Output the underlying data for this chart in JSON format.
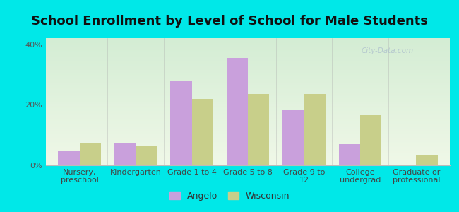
{
  "title": "School Enrollment by Level of School for Male Students",
  "categories": [
    "Nursery,\npreschool",
    "Kindergarten",
    "Grade 1 to 4",
    "Grade 5 to 8",
    "Grade 9 to\n12",
    "College\nundergrad",
    "Graduate or\nprofessional"
  ],
  "angelo": [
    5.0,
    7.5,
    28.0,
    35.5,
    18.5,
    7.0,
    0.0
  ],
  "wisconsin": [
    7.5,
    6.5,
    22.0,
    23.5,
    23.5,
    16.5,
    3.5
  ],
  "angelo_color": "#c9a0dc",
  "wisconsin_color": "#c8cf8a",
  "ylim": [
    0,
    42
  ],
  "yticks": [
    0,
    20,
    40
  ],
  "ytick_labels": [
    "0%",
    "20%",
    "40%"
  ],
  "background_color": "#00e8e8",
  "legend_angelo": "Angelo",
  "legend_wisconsin": "Wisconsin",
  "title_fontsize": 13,
  "tick_fontsize": 8,
  "legend_fontsize": 9,
  "bar_width": 0.38,
  "watermark": "City-Data.com"
}
